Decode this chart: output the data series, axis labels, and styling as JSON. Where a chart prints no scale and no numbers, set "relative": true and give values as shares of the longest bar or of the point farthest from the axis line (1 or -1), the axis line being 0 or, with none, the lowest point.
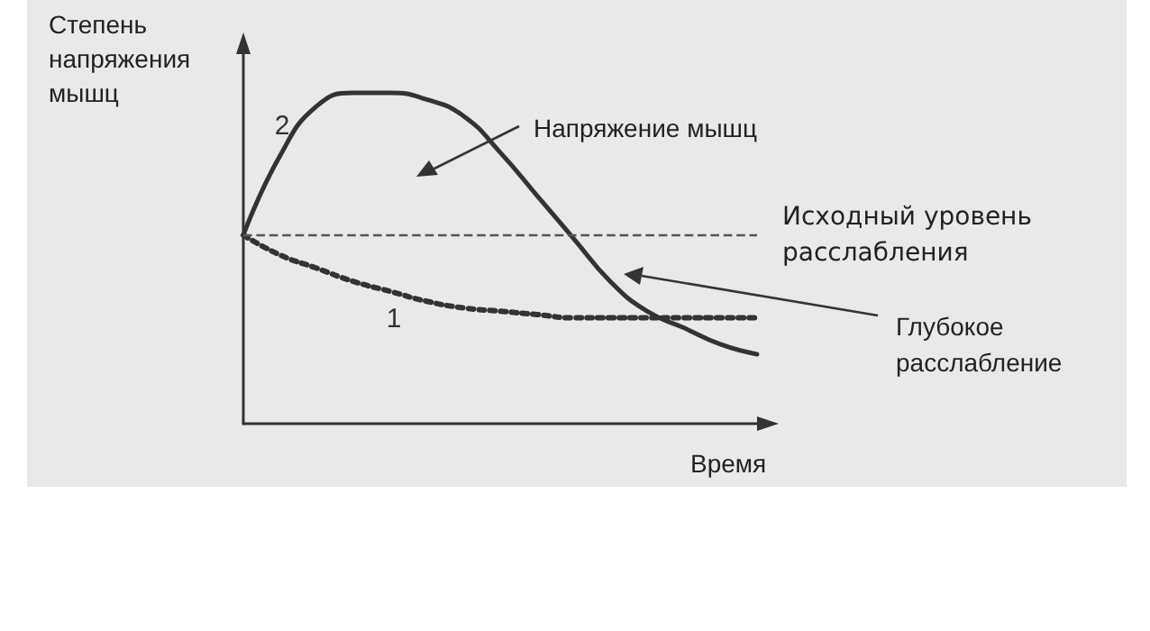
{
  "chart_data": {
    "type": "line",
    "relative": true,
    "xlabel": "Время",
    "ylabel": "Степень напряжения мышц",
    "categories": [
      null,
      null,
      null,
      null,
      null,
      null,
      null,
      null,
      null,
      null,
      null,
      null,
      null,
      null,
      null
    ],
    "series": [
      {
        "name": "2",
        "color": "#333333",
        "line_style": "solid",
        "values": [
          0.57,
          0.81,
          0.96,
          1.0,
          1.0,
          0.98,
          0.93,
          0.82,
          0.69,
          0.56,
          0.43,
          0.34,
          0.29,
          0.24,
          0.21
        ]
      },
      {
        "name": "1",
        "color": "#333333",
        "line_style": "dotted",
        "values": [
          0.57,
          0.51,
          0.47,
          0.43,
          0.4,
          0.37,
          0.35,
          0.34,
          0.33,
          0.32,
          0.32,
          0.32,
          0.32,
          0.32,
          0.32
        ]
      }
    ],
    "ref_lines": [
      {
        "axis": "y",
        "value": 0.57,
        "label": "Исходный уровень расслабления",
        "line_style": "dashed",
        "color": "#555555"
      }
    ],
    "annotations": [
      "Напряжение мышц",
      "Глубокое расслабление"
    ],
    "grid": false,
    "legend": false,
    "marker": "none"
  }
}
